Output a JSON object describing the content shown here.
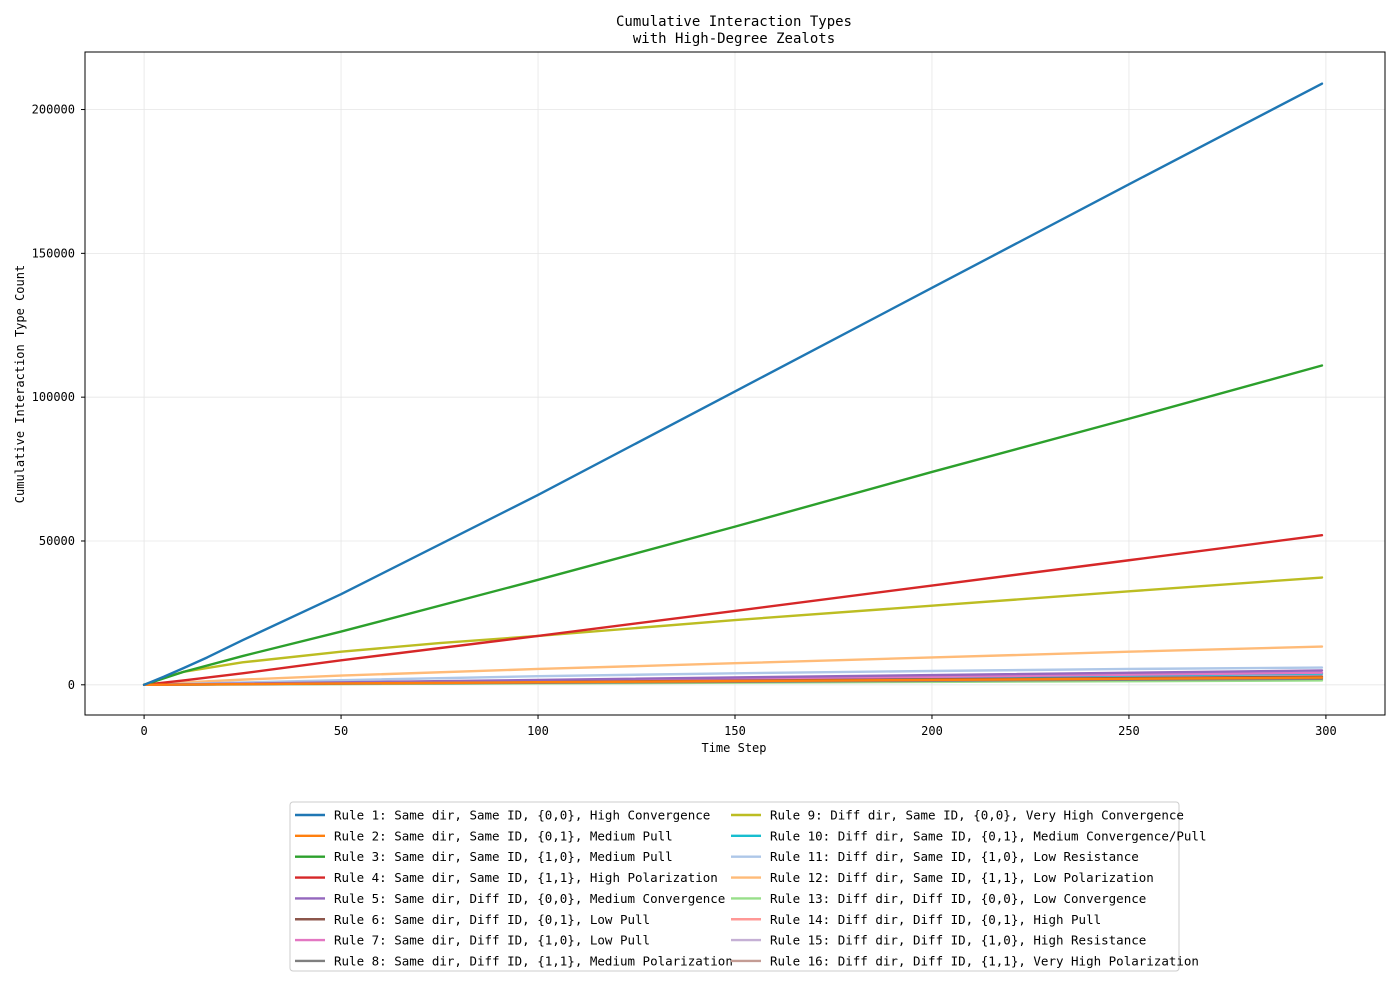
{
  "chart_data": {
    "type": "line",
    "title": [
      "Cumulative Interaction Types",
      "with High-Degree Zealots"
    ],
    "xlabel": "Time Step",
    "ylabel": "Cumulative Interaction Type Count",
    "xlim": [
      -15,
      315
    ],
    "ylim": [
      -10500,
      220000
    ],
    "xticks": [
      0,
      50,
      100,
      150,
      200,
      250,
      300
    ],
    "yticks": [
      0,
      50000,
      100000,
      150000,
      200000
    ],
    "grid": true,
    "legend_position": "bottom-center",
    "series": [
      {
        "name": "Rule 1: Same dir, Same ID, {0,0}, High Convergence",
        "color": "#1f77b4",
        "x": [
          0,
          5,
          10,
          16,
          25,
          50,
          100,
          150,
          200,
          250,
          299
        ],
        "y": [
          0,
          2800,
          5800,
          9500,
          15500,
          31500,
          66000,
          102000,
          138000,
          174000,
          209000
        ]
      },
      {
        "name": "Rule 2: Same dir, Same ID, {0,1}, Medium Pull",
        "color": "#ff7f0e",
        "x": [
          0,
          100,
          200,
          299
        ],
        "y": [
          0,
          900,
          1700,
          2500
        ]
      },
      {
        "name": "Rule 3: Same dir, Same ID, {1,0}, Medium Pull",
        "color": "#2ca02c",
        "x": [
          0,
          10,
          25,
          50,
          100,
          150,
          200,
          250,
          299
        ],
        "y": [
          0,
          4500,
          10000,
          18500,
          36500,
          55000,
          74000,
          92500,
          111000
        ]
      },
      {
        "name": "Rule 4: Same dir, Same ID, {1,1}, High Polarization",
        "color": "#d62728",
        "x": [
          0,
          10,
          25,
          50,
          100,
          150,
          200,
          250,
          299
        ],
        "y": [
          0,
          1500,
          4000,
          8500,
          17000,
          25700,
          34500,
          43300,
          52000
        ]
      },
      {
        "name": "Rule 5: Same dir, Diff ID, {0,0}, Medium Convergence",
        "color": "#9467bd",
        "x": [
          0,
          100,
          200,
          299
        ],
        "y": [
          0,
          1700,
          3400,
          5000
        ]
      },
      {
        "name": "Rule 6: Same dir, Diff ID, {0,1}, Low Pull",
        "color": "#8c564b",
        "x": [
          0,
          100,
          200,
          299
        ],
        "y": [
          0,
          1000,
          1900,
          2800
        ]
      },
      {
        "name": "Rule 7: Same dir, Diff ID, {1,0}, Low Pull",
        "color": "#e377c2",
        "x": [
          0,
          100,
          200,
          299
        ],
        "y": [
          0,
          1400,
          2800,
          4200
        ]
      },
      {
        "name": "Rule 8: Same dir, Diff ID, {1,1}, Medium Polarization",
        "color": "#7f7f7f",
        "x": [
          0,
          100,
          200,
          299
        ],
        "y": [
          0,
          700,
          1400,
          2100
        ]
      },
      {
        "name": "Rule 9: Diff dir, Same ID, {0,0}, Very High Convergence",
        "color": "#bcbd22",
        "x": [
          0,
          5,
          10,
          25,
          50,
          75,
          100,
          150,
          200,
          250,
          299
        ],
        "y": [
          0,
          2500,
          4500,
          7800,
          11500,
          14500,
          17000,
          22500,
          27500,
          32500,
          37300
        ]
      },
      {
        "name": "Rule 10: Diff dir, Same ID, {0,1}, Medium Convergence/Pull",
        "color": "#17becf",
        "x": [
          0,
          100,
          200,
          299
        ],
        "y": [
          0,
          1300,
          2600,
          3900
        ]
      },
      {
        "name": "Rule 11: Diff dir, Same ID, {1,0}, Low Resistance",
        "color": "#aec7e8",
        "x": [
          0,
          50,
          100,
          150,
          200,
          250,
          299
        ],
        "y": [
          0,
          1600,
          3000,
          4000,
          4800,
          5500,
          6000
        ]
      },
      {
        "name": "Rule 12: Diff dir, Same ID, {1,1}, Low Polarization",
        "color": "#ffbb78",
        "x": [
          0,
          10,
          25,
          50,
          100,
          150,
          200,
          250,
          299
        ],
        "y": [
          0,
          800,
          1800,
          3200,
          5500,
          7500,
          9500,
          11500,
          13300
        ]
      },
      {
        "name": "Rule 13: Diff dir, Diff ID, {0,0}, Low Convergence",
        "color": "#98df8a",
        "x": [
          0,
          100,
          200,
          299
        ],
        "y": [
          0,
          500,
          1000,
          1500
        ]
      },
      {
        "name": "Rule 14: Diff dir, Diff ID, {0,1}, High Pull",
        "color": "#ff9896",
        "x": [
          0,
          100,
          200,
          299
        ],
        "y": [
          0,
          900,
          1800,
          2700
        ]
      },
      {
        "name": "Rule 15: Diff dir, Diff ID, {1,0}, High Resistance",
        "color": "#c5b0d5",
        "x": [
          0,
          100,
          200,
          299
        ],
        "y": [
          0,
          1200,
          2400,
          3500
        ]
      },
      {
        "name": "Rule 16: Diff dir, Diff ID, {1,1}, Very High Polarization",
        "color": "#c49c94",
        "x": [
          0,
          100,
          200,
          299
        ],
        "y": [
          0,
          600,
          1200,
          1800
        ]
      }
    ]
  }
}
